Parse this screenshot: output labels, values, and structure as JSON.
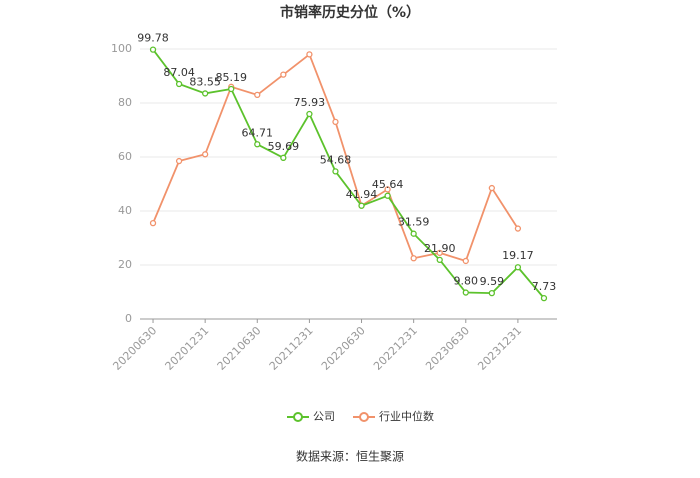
{
  "chart_data": {
    "type": "line",
    "title": "市销率历史分位（%）",
    "categories": [
      "20200630",
      null,
      "20201231",
      null,
      "20210630",
      null,
      "20211231",
      null,
      "20220630",
      null,
      "20221231",
      null,
      "20230630",
      null,
      "20231231",
      null
    ],
    "series": [
      {
        "name": "公司",
        "color": "#5cc22c",
        "values": [
          99.78,
          87.04,
          83.55,
          85.19,
          64.71,
          59.69,
          75.93,
          54.68,
          41.94,
          45.64,
          31.59,
          21.9,
          9.8,
          9.59,
          19.17,
          7.73
        ],
        "value_labels": [
          "99.78",
          "87.04",
          "83.55",
          "85.19",
          "64.71",
          "59.69",
          "75.93",
          "54.68",
          "41.94",
          "45.64",
          "31.59",
          "21.90",
          "9.80",
          "9.59",
          "19.17",
          "7.73"
        ]
      },
      {
        "name": "行业中位数",
        "color": "#f1926b",
        "values": [
          35.5,
          58.5,
          61,
          86,
          83,
          90.5,
          98,
          73,
          42,
          48,
          22.5,
          24.5,
          21.5,
          48.5,
          33.5,
          null
        ]
      }
    ],
    "ylim": [
      0,
      100
    ],
    "yticks": [
      0,
      20,
      40,
      60,
      80,
      100
    ],
    "grid": true,
    "source": "数据来源：恒生聚源"
  }
}
